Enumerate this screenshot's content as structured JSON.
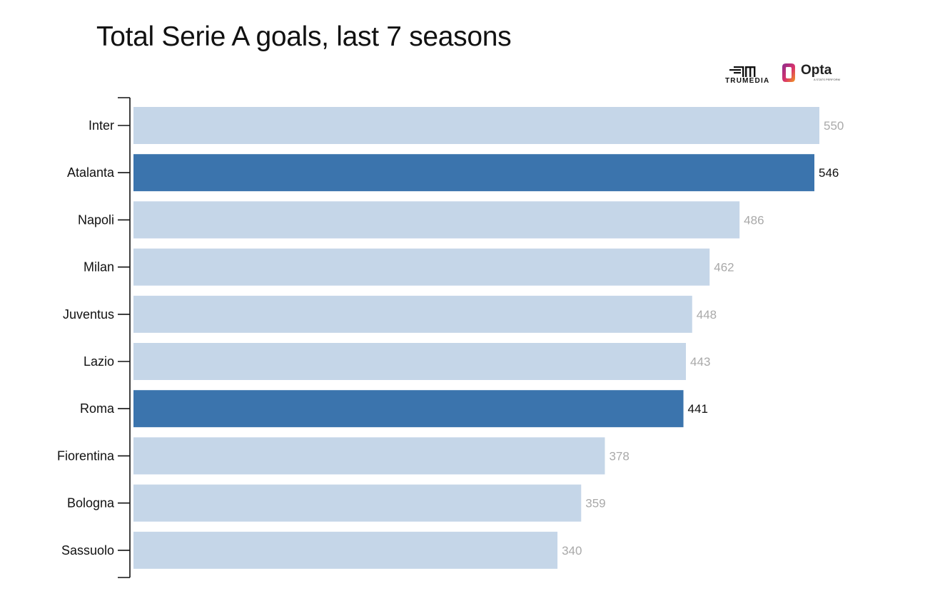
{
  "title": "Total Serie A goals, last 7 seasons",
  "logos": {
    "trumedia": "TRUMEDIA",
    "opta": "Opta",
    "opta_sub": "A STATS PERFORM",
    "trumedia_icon": "trumedia-logo-icon",
    "opta_icon": "opta-logo-icon"
  },
  "colors": {
    "default_bar": "#c5d6e8",
    "highlight_bar": "#3b74ad",
    "default_value": "#a9a9a9",
    "highlight_value": "#111111"
  },
  "chart_data": {
    "type": "bar",
    "orientation": "horizontal",
    "categories": [
      "Inter",
      "Atalanta",
      "Napoli",
      "Milan",
      "Juventus",
      "Lazio",
      "Roma",
      "Fiorentina",
      "Bologna",
      "Sassuolo"
    ],
    "values": [
      550,
      546,
      486,
      462,
      448,
      443,
      441,
      378,
      359,
      340
    ],
    "highlighted": [
      "Atalanta",
      "Roma"
    ],
    "xlim": [
      0,
      550
    ],
    "grid": false,
    "legend": "none"
  }
}
